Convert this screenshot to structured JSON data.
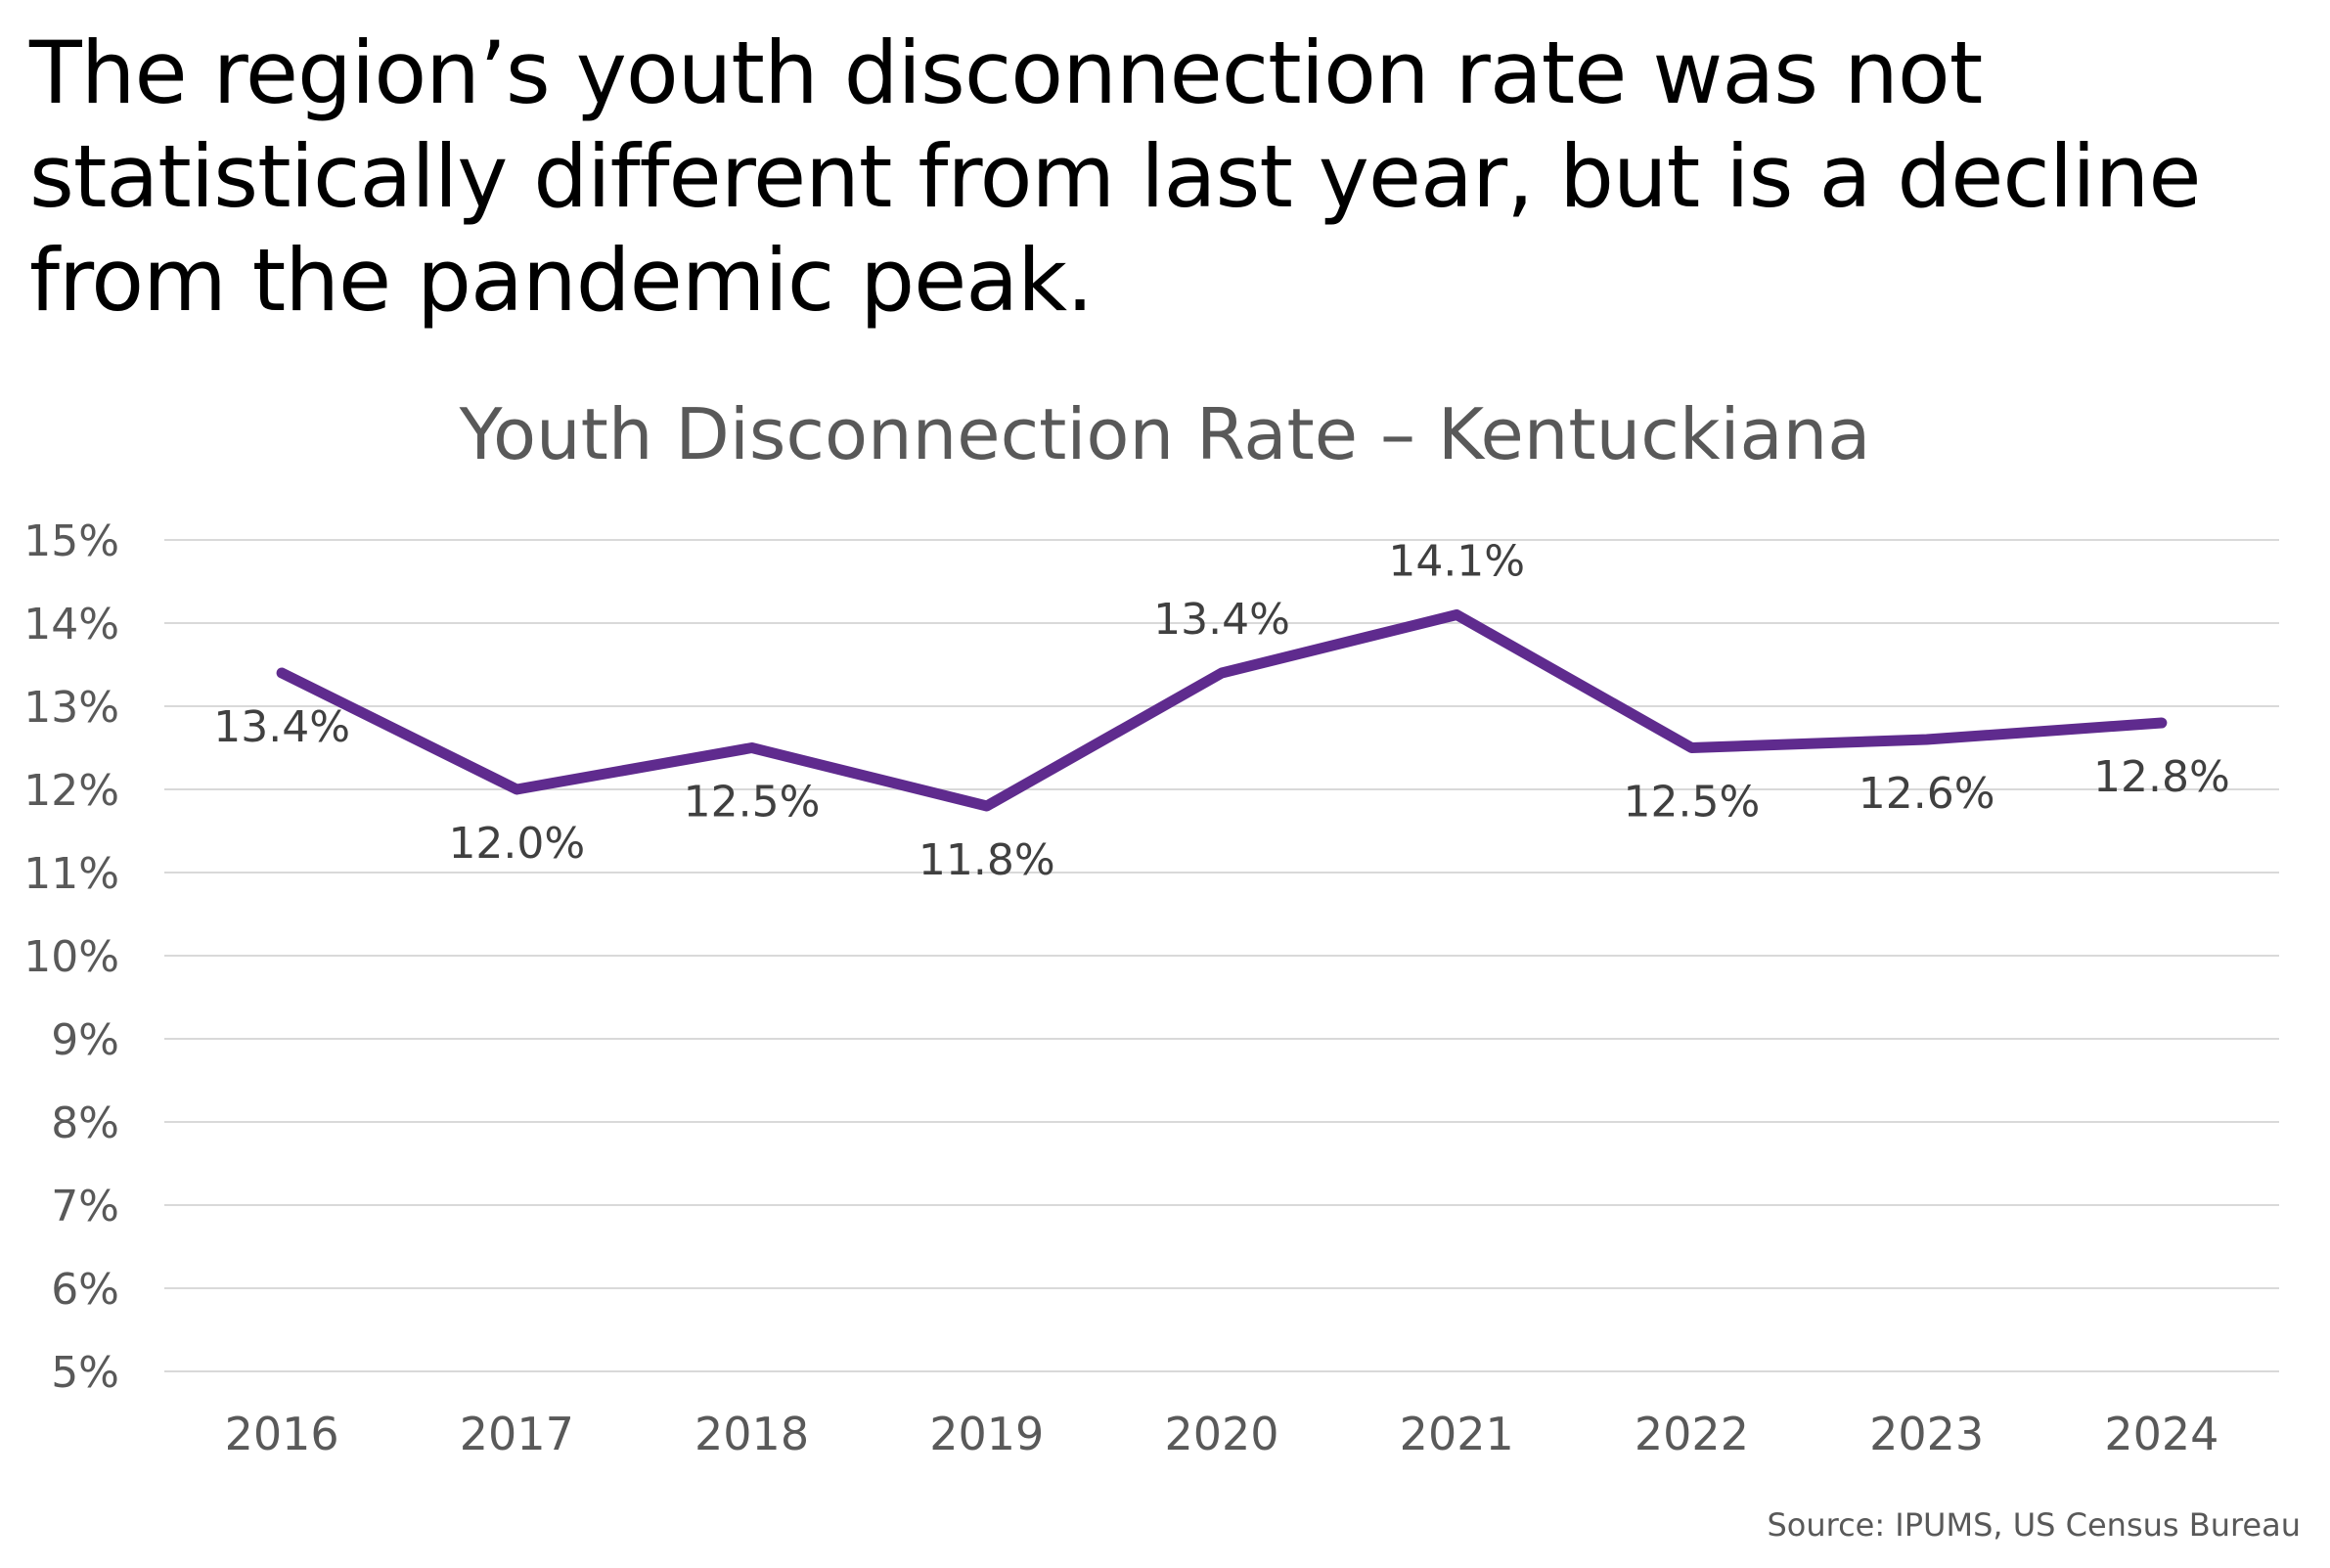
{
  "headline": "The region’s youth disconnection rate was not statistically different from last year, but is a decline from the pandemic peak.",
  "source": "Source: IPUMS, US Census Bureau",
  "colors": {
    "line": "#5F2B8E",
    "grid": "#D9D9D9",
    "axis_text": "#595959",
    "label_text": "#404040"
  },
  "chart_data": {
    "type": "line",
    "title": "Youth Disconnection Rate – Kentuckiana",
    "xlabel": "",
    "ylabel": "",
    "categories": [
      "2016",
      "2017",
      "2018",
      "2019",
      "2020",
      "2021",
      "2022",
      "2023",
      "2024"
    ],
    "series": [
      {
        "values": [
          13.4,
          12.0,
          12.5,
          11.8,
          13.4,
          14.1,
          12.5,
          12.6,
          12.8
        ],
        "labels": [
          "13.4%",
          "12.0%",
          "12.5%",
          "11.8%",
          "13.4%",
          "14.1%",
          "12.5%",
          "12.6%",
          "12.8%"
        ],
        "label_position": [
          "below",
          "below",
          "below",
          "below",
          "above",
          "above",
          "below",
          "below",
          "below"
        ]
      }
    ],
    "ylim": [
      5,
      15
    ],
    "yticks": [
      "5%",
      "6%",
      "7%",
      "8%",
      "9%",
      "10%",
      "11%",
      "12%",
      "13%",
      "14%",
      "15%"
    ],
    "grid": true,
    "legend": "none"
  }
}
